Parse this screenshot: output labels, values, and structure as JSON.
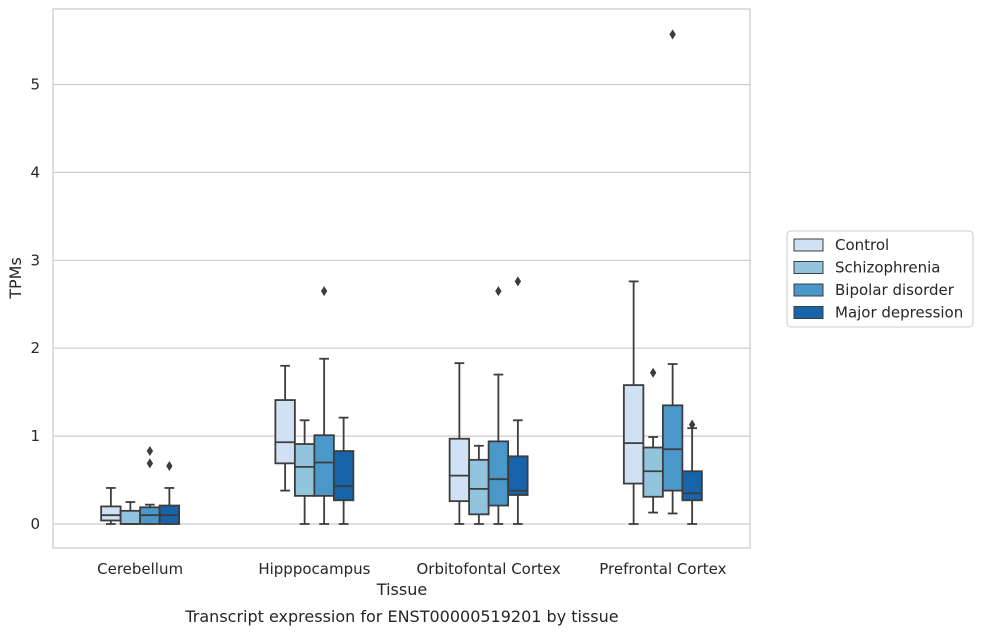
{
  "chart_data": {
    "type": "box",
    "xlabel": "Tissue",
    "ylabel": "TPMs",
    "caption": "Transcript expression for ENST00000519201 by tissue",
    "ylim": [
      -0.27,
      5.88
    ],
    "yticks": [
      "0",
      "1",
      "2",
      "3",
      "4",
      "5"
    ],
    "grid": "horizontal",
    "legend_position": "right",
    "categories": [
      "Cerebellum",
      "Hipppocampus",
      "Orbitofontal Cortex",
      "Prefrontal Cortex"
    ],
    "series": [
      {
        "name": "Control",
        "color": "#cfe1f2",
        "boxes": [
          {
            "whislo": 0.0,
            "q1": 0.04,
            "med": 0.1,
            "q3": 0.2,
            "whishi": 0.41,
            "fliers": []
          },
          {
            "whislo": 0.38,
            "q1": 0.69,
            "med": 0.93,
            "q3": 1.41,
            "whishi": 1.8,
            "fliers": []
          },
          {
            "whislo": 0.0,
            "q1": 0.26,
            "med": 0.55,
            "q3": 0.97,
            "whishi": 1.83,
            "fliers": []
          },
          {
            "whislo": 0.0,
            "q1": 0.46,
            "med": 0.92,
            "q3": 1.58,
            "whishi": 2.76,
            "fliers": []
          }
        ]
      },
      {
        "name": "Schizophrenia",
        "color": "#93c4de",
        "boxes": [
          {
            "whislo": 0.0,
            "q1": 0.0,
            "med": 0.0,
            "q3": 0.15,
            "whishi": 0.25,
            "fliers": []
          },
          {
            "whislo": 0.0,
            "q1": 0.32,
            "med": 0.65,
            "q3": 0.91,
            "whishi": 1.18,
            "fliers": []
          },
          {
            "whislo": 0.0,
            "q1": 0.11,
            "med": 0.4,
            "q3": 0.73,
            "whishi": 0.89,
            "fliers": []
          },
          {
            "whislo": 0.13,
            "q1": 0.31,
            "med": 0.6,
            "q3": 0.87,
            "whishi": 0.99,
            "fliers": [
              1.72
            ]
          }
        ]
      },
      {
        "name": "Bipolar disorder",
        "color": "#4a98c9",
        "boxes": [
          {
            "whislo": 0.0,
            "q1": 0.0,
            "med": 0.1,
            "q3": 0.19,
            "whishi": 0.22,
            "fliers": [
              0.69,
              0.83
            ]
          },
          {
            "whislo": 0.0,
            "q1": 0.32,
            "med": 0.7,
            "q3": 1.01,
            "whishi": 1.88,
            "fliers": [
              2.65
            ]
          },
          {
            "whislo": 0.0,
            "q1": 0.21,
            "med": 0.51,
            "q3": 0.94,
            "whishi": 1.7,
            "fliers": [
              2.65
            ]
          },
          {
            "whislo": 0.12,
            "q1": 0.38,
            "med": 0.85,
            "q3": 1.35,
            "whishi": 1.82,
            "fliers": [
              5.57
            ]
          }
        ]
      },
      {
        "name": "Major depression",
        "color": "#1764ab",
        "boxes": [
          {
            "whislo": 0.0,
            "q1": 0.0,
            "med": 0.1,
            "q3": 0.21,
            "whishi": 0.41,
            "fliers": [
              0.66
            ]
          },
          {
            "whislo": 0.0,
            "q1": 0.27,
            "med": 0.43,
            "q3": 0.83,
            "whishi": 1.21,
            "fliers": []
          },
          {
            "whislo": 0.0,
            "q1": 0.33,
            "med": 0.38,
            "q3": 0.77,
            "whishi": 1.18,
            "fliers": [
              2.76
            ]
          },
          {
            "whislo": 0.0,
            "q1": 0.27,
            "med": 0.35,
            "q3": 0.6,
            "whishi": 1.09,
            "fliers": [
              1.13
            ]
          }
        ]
      }
    ]
  }
}
